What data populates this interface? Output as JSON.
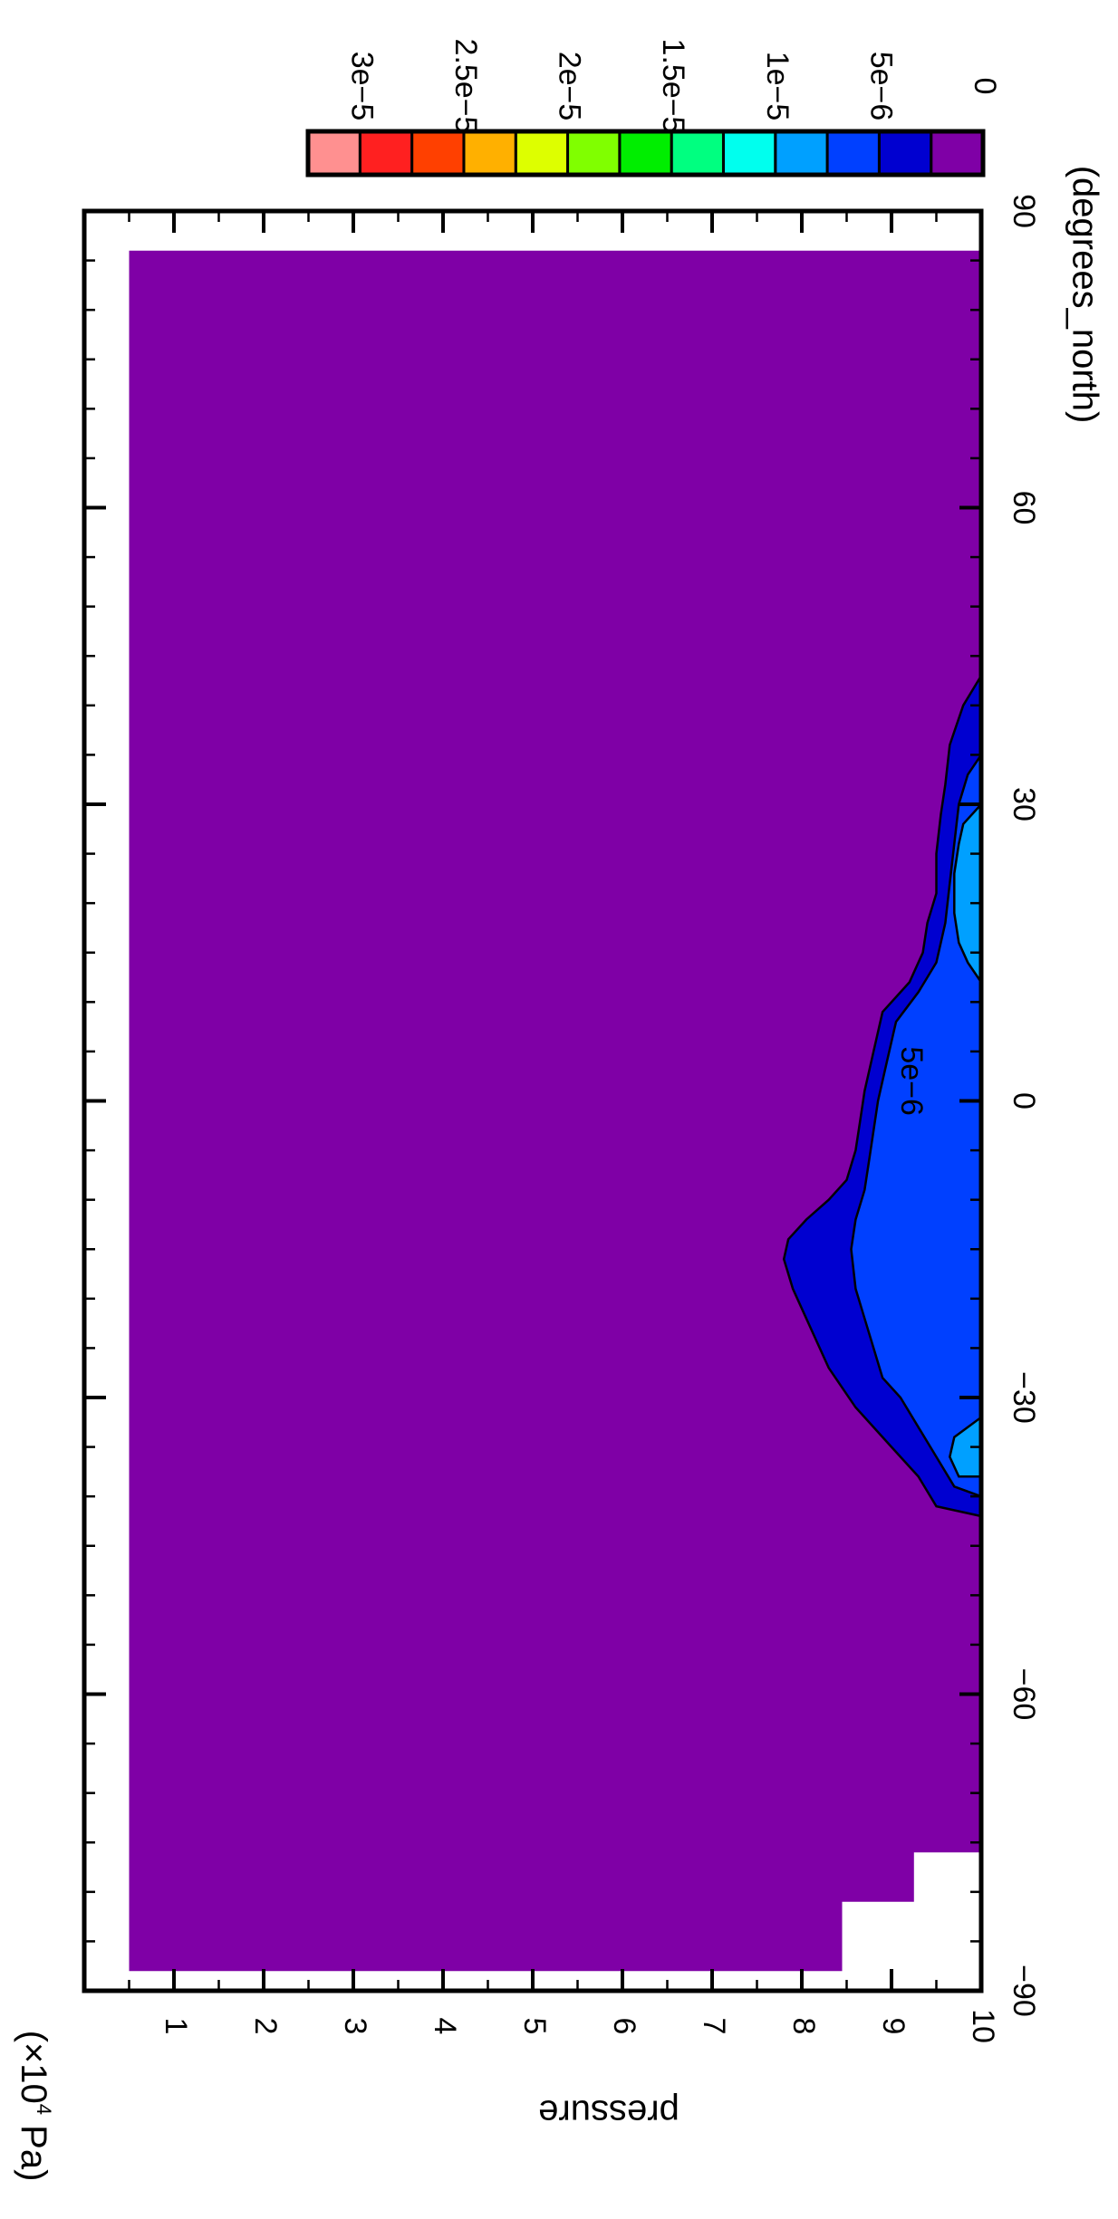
{
  "chart_data": {
    "type": "heatmap",
    "subtype": "filled-contour",
    "orientation": "rotated-90-clockwise",
    "xlabel": "(degrees_north)",
    "ylabel": "pressure",
    "yunit_prefix": "(×10",
    "yunit_exp": "4",
    "yunit_suffix": " Pa)",
    "xlim": [
      -90,
      90
    ],
    "ylim": [
      10,
      0
    ],
    "x_ticks": [
      {
        "value": -90,
        "label": "−90"
      },
      {
        "value": -60,
        "label": "−60"
      },
      {
        "value": -30,
        "label": "−30"
      },
      {
        "value": 0,
        "label": "0"
      },
      {
        "value": 30,
        "label": "30"
      },
      {
        "value": 60,
        "label": "60"
      },
      {
        "value": 90,
        "label": "90"
      }
    ],
    "y_ticks": [
      {
        "value": 1,
        "label": "1"
      },
      {
        "value": 2,
        "label": "2"
      },
      {
        "value": 3,
        "label": "3"
      },
      {
        "value": 4,
        "label": "4"
      },
      {
        "value": 5,
        "label": "5"
      },
      {
        "value": 6,
        "label": "6"
      },
      {
        "value": 7,
        "label": "7"
      },
      {
        "value": 8,
        "label": "8"
      },
      {
        "value": 9,
        "label": "9"
      },
      {
        "value": 10,
        "label": "10"
      }
    ],
    "colorbar": {
      "colors": [
        "#7f00a6",
        "#0000d0",
        "#0040ff",
        "#00a0ff",
        "#00ffee",
        "#00ff80",
        "#00ee00",
        "#80ff00",
        "#ddff00",
        "#ffb000",
        "#ff4000",
        "#ff2020",
        "#ff9090"
      ],
      "ticks": [
        {
          "index": 0,
          "label": "0"
        },
        {
          "index": 2,
          "label": "5e−6"
        },
        {
          "index": 4,
          "label": "1e−5"
        },
        {
          "index": 6,
          "label": "1.5e−5"
        },
        {
          "index": 8,
          "label": "2e−5"
        },
        {
          "index": 10,
          "label": "2.5e−5"
        },
        {
          "index": 12,
          "label": "3e−5"
        }
      ]
    },
    "contour_label": "5e−6",
    "contour_label_at": {
      "x": 2,
      "y": 9.2
    },
    "background_color": "#7f00a6",
    "valid_region": {
      "x_from": -88,
      "x_to": 86,
      "y_from": 0.5,
      "y_to": 10
    },
    "missing_steps": [
      {
        "x_from": -88,
        "x_to": -81,
        "y_from": 8.45
      },
      {
        "x_from": -81,
        "x_to": -76,
        "y_from": 9.25
      }
    ],
    "levels": [
      {
        "level": 1,
        "boundary": [
          [
            -42,
            10
          ],
          [
            -41,
            9.5
          ],
          [
            -38,
            9.3
          ],
          [
            -35,
            9.0
          ],
          [
            -31,
            8.6
          ],
          [
            -27,
            8.3
          ],
          [
            -23,
            8.1
          ],
          [
            -19,
            7.9
          ],
          [
            -16,
            7.8
          ],
          [
            -14,
            7.85
          ],
          [
            -12,
            8.05
          ],
          [
            -10,
            8.3
          ],
          [
            -8,
            8.5
          ],
          [
            -5,
            8.6
          ],
          [
            -2,
            8.65
          ],
          [
            1,
            8.7
          ],
          [
            5,
            8.8
          ],
          [
            9,
            8.9
          ],
          [
            12,
            9.2
          ],
          [
            15,
            9.35
          ],
          [
            18,
            9.4
          ],
          [
            21,
            9.5
          ],
          [
            25,
            9.5
          ],
          [
            29,
            9.55
          ],
          [
            32,
            9.6
          ],
          [
            36,
            9.65
          ],
          [
            40,
            9.8
          ],
          [
            43,
            10
          ]
        ]
      },
      {
        "level": 2,
        "boundary": [
          [
            -40,
            10
          ],
          [
            -39,
            9.7
          ],
          [
            -36,
            9.5
          ],
          [
            -33,
            9.3
          ],
          [
            -30,
            9.1
          ],
          [
            -28,
            8.9
          ],
          [
            -25,
            8.8
          ],
          [
            -22,
            8.7
          ],
          [
            -19,
            8.6
          ],
          [
            -15,
            8.55
          ],
          [
            -12,
            8.6
          ],
          [
            -9,
            8.7
          ],
          [
            -6,
            8.75
          ],
          [
            -3,
            8.8
          ],
          [
            0,
            8.85
          ],
          [
            4,
            8.95
          ],
          [
            8,
            9.05
          ],
          [
            11,
            9.3
          ],
          [
            14,
            9.5
          ],
          [
            18,
            9.6
          ],
          [
            22,
            9.65
          ],
          [
            26,
            9.7
          ],
          [
            30,
            9.75
          ],
          [
            33,
            9.85
          ],
          [
            35,
            10
          ]
        ]
      },
      {
        "level": 3,
        "boundary": [
          [
            -38,
            10
          ],
          [
            -38,
            9.75
          ],
          [
            -36,
            9.65
          ],
          [
            -34,
            9.7
          ],
          [
            -33,
            9.85
          ],
          [
            -32,
            10
          ]
        ]
      },
      {
        "level": 3,
        "boundary": [
          [
            12,
            10
          ],
          [
            14,
            9.85
          ],
          [
            16,
            9.75
          ],
          [
            19,
            9.7
          ],
          [
            23,
            9.7
          ],
          [
            26,
            9.75
          ],
          [
            28,
            9.8
          ],
          [
            30,
            10
          ]
        ]
      }
    ]
  }
}
